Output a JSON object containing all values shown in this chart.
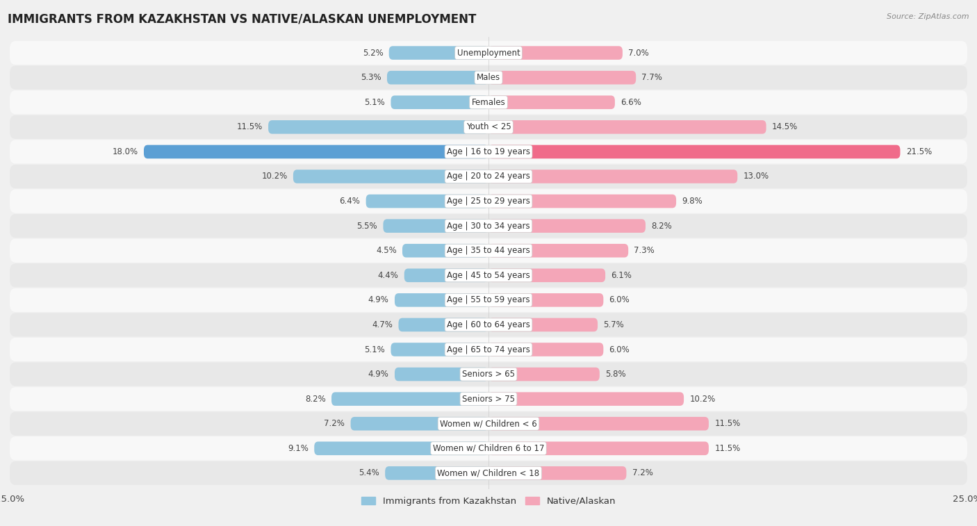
{
  "title": "IMMIGRANTS FROM KAZAKHSTAN VS NATIVE/ALASKAN UNEMPLOYMENT",
  "source": "Source: ZipAtlas.com",
  "categories": [
    "Unemployment",
    "Males",
    "Females",
    "Youth < 25",
    "Age | 16 to 19 years",
    "Age | 20 to 24 years",
    "Age | 25 to 29 years",
    "Age | 30 to 34 years",
    "Age | 35 to 44 years",
    "Age | 45 to 54 years",
    "Age | 55 to 59 years",
    "Age | 60 to 64 years",
    "Age | 65 to 74 years",
    "Seniors > 65",
    "Seniors > 75",
    "Women w/ Children < 6",
    "Women w/ Children 6 to 17",
    "Women w/ Children < 18"
  ],
  "left_values": [
    5.2,
    5.3,
    5.1,
    11.5,
    18.0,
    10.2,
    6.4,
    5.5,
    4.5,
    4.4,
    4.9,
    4.7,
    5.1,
    4.9,
    8.2,
    7.2,
    9.1,
    5.4
  ],
  "right_values": [
    7.0,
    7.7,
    6.6,
    14.5,
    21.5,
    13.0,
    9.8,
    8.2,
    7.3,
    6.1,
    6.0,
    5.7,
    6.0,
    5.8,
    10.2,
    11.5,
    11.5,
    7.2
  ],
  "left_color": "#92c5de",
  "right_color": "#f4a6b8",
  "left_highlight": "#5b9fd4",
  "right_highlight": "#f06b8a",
  "left_label": "Immigrants from Kazakhstan",
  "right_label": "Native/Alaskan",
  "x_max": 25.0,
  "bg_color": "#f0f0f0",
  "row_bg_light": "#f8f8f8",
  "row_bg_dark": "#e8e8e8",
  "title_fontsize": 12,
  "label_fontsize": 8.5,
  "value_fontsize": 8.5,
  "highlight_row": 4
}
